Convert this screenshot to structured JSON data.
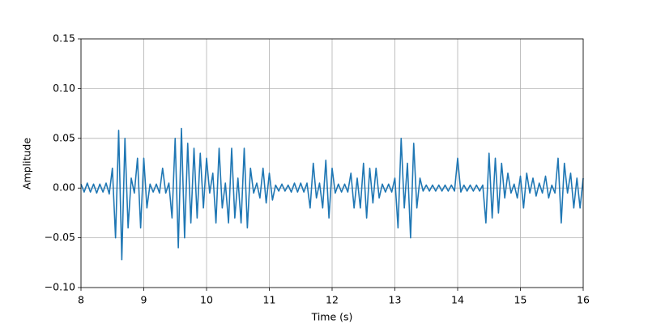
{
  "chart_data": {
    "type": "line",
    "x_label": "Time (s)",
    "y_label": "Amplitude",
    "color": "#1f77b4",
    "grid": true,
    "xlim": [
      8,
      16
    ],
    "xticks": [
      8,
      9,
      10,
      11,
      12,
      13,
      14,
      15,
      16
    ],
    "ylim": [
      -0.1,
      0.15
    ],
    "yticks": [
      {
        "value": -0.1,
        "label": "−0.10"
      },
      {
        "value": -0.05,
        "label": "−0.05"
      },
      {
        "value": 0,
        "label": "0.00"
      },
      {
        "value": 0.05,
        "label": "0.05"
      },
      {
        "value": 0.1,
        "label": "0.10"
      },
      {
        "value": 0.15,
        "label": "0.15"
      }
    ],
    "x": [
      8.0,
      8.05,
      8.1,
      8.15,
      8.2,
      8.25,
      8.3,
      8.35,
      8.4,
      8.45,
      8.5,
      8.55,
      8.6,
      8.65,
      8.7,
      8.75,
      8.8,
      8.85,
      8.9,
      8.95,
      9.0,
      9.05,
      9.1,
      9.15,
      9.2,
      9.25,
      9.3,
      9.35,
      9.4,
      9.45,
      9.5,
      9.55,
      9.6,
      9.65,
      9.7,
      9.75,
      9.8,
      9.85,
      9.9,
      9.95,
      10.0,
      10.05,
      10.1,
      10.15,
      10.2,
      10.25,
      10.3,
      10.35,
      10.4,
      10.45,
      10.5,
      10.55,
      10.6,
      10.65,
      10.7,
      10.75,
      10.8,
      10.85,
      10.9,
      10.95,
      11.0,
      11.05,
      11.1,
      11.15,
      11.2,
      11.25,
      11.3,
      11.35,
      11.4,
      11.45,
      11.5,
      11.55,
      11.6,
      11.65,
      11.7,
      11.75,
      11.8,
      11.85,
      11.9,
      11.95,
      12.0,
      12.05,
      12.1,
      12.15,
      12.2,
      12.25,
      12.3,
      12.35,
      12.4,
      12.45,
      12.5,
      12.55,
      12.6,
      12.65,
      12.7,
      12.75,
      12.8,
      12.85,
      12.9,
      12.95,
      13.0,
      13.05,
      13.1,
      13.15,
      13.2,
      13.25,
      13.3,
      13.35,
      13.4,
      13.45,
      13.5,
      13.55,
      13.6,
      13.65,
      13.7,
      13.75,
      13.8,
      13.85,
      13.9,
      13.95,
      14.0,
      14.05,
      14.1,
      14.15,
      14.2,
      14.25,
      14.3,
      14.35,
      14.4,
      14.45,
      14.5,
      14.55,
      14.6,
      14.65,
      14.7,
      14.75,
      14.8,
      14.85,
      14.9,
      14.95,
      15.0,
      15.05,
      15.1,
      15.15,
      15.2,
      15.25,
      15.3,
      15.35,
      15.4,
      15.45,
      15.5,
      15.55,
      15.6,
      15.65,
      15.7,
      15.75,
      15.8,
      15.85,
      15.9,
      15.95,
      16.0
    ],
    "values": [
      0.004,
      -0.004,
      0.005,
      -0.004,
      0.004,
      -0.005,
      0.004,
      -0.004,
      0.005,
      -0.006,
      0.02,
      -0.05,
      0.058,
      -0.072,
      0.05,
      -0.04,
      0.01,
      -0.005,
      0.03,
      -0.04,
      0.03,
      -0.02,
      0.004,
      -0.004,
      0.004,
      -0.005,
      0.02,
      -0.005,
      0.005,
      -0.03,
      0.05,
      -0.06,
      0.06,
      -0.05,
      0.045,
      -0.035,
      0.04,
      -0.03,
      0.035,
      -0.02,
      0.03,
      -0.005,
      0.015,
      -0.035,
      0.04,
      -0.02,
      0.005,
      -0.035,
      0.04,
      -0.03,
      0.01,
      -0.035,
      0.04,
      -0.04,
      0.02,
      -0.005,
      0.005,
      -0.01,
      0.02,
      -0.015,
      0.015,
      -0.012,
      0.003,
      -0.003,
      0.004,
      -0.003,
      0.003,
      -0.004,
      0.005,
      -0.004,
      0.005,
      -0.004,
      0.005,
      -0.02,
      0.025,
      -0.01,
      0.005,
      -0.02,
      0.028,
      -0.03,
      0.02,
      -0.005,
      0.004,
      -0.004,
      0.004,
      -0.004,
      0.015,
      -0.02,
      0.01,
      -0.02,
      0.025,
      -0.03,
      0.02,
      -0.015,
      0.02,
      -0.01,
      0.004,
      -0.004,
      0.004,
      -0.004,
      0.01,
      -0.04,
      0.05,
      -0.02,
      0.025,
      -0.05,
      0.045,
      -0.02,
      0.01,
      -0.003,
      0.003,
      -0.003,
      0.003,
      -0.003,
      0.003,
      -0.003,
      0.003,
      -0.003,
      0.003,
      -0.003,
      0.03,
      -0.004,
      0.003,
      -0.003,
      0.003,
      -0.003,
      0.003,
      -0.003,
      0.003,
      -0.035,
      0.035,
      -0.03,
      0.03,
      -0.025,
      0.025,
      -0.01,
      0.015,
      -0.005,
      0.004,
      -0.01,
      0.012,
      -0.02,
      0.015,
      -0.005,
      0.01,
      -0.008,
      0.005,
      -0.005,
      0.012,
      -0.01,
      0.003,
      -0.005,
      0.03,
      -0.035,
      0.025,
      -0.005,
      0.015,
      -0.02,
      0.01,
      -0.02,
      0.01
    ]
  }
}
